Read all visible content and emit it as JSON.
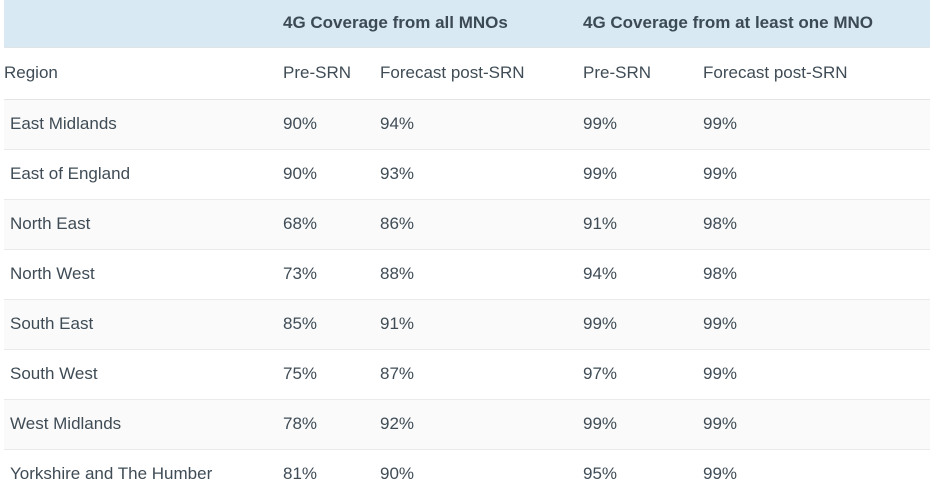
{
  "colors": {
    "group_header_bg": "#d9e9f3",
    "text": "#3f4c56",
    "alt_row_bg": "#fafafa",
    "row_border": "#eaeaea"
  },
  "table": {
    "group_headers": {
      "all_mnos": "4G Coverage from all MNOs",
      "one_mno": "4G Coverage from at least one MNO"
    },
    "columns": {
      "region": "Region",
      "all_pre": "Pre-SRN",
      "all_post": "Forecast post-SRN",
      "one_pre": "Pre-SRN",
      "one_post": "Forecast post-SRN"
    },
    "rows": [
      {
        "region": "East Midlands",
        "all_pre": "90%",
        "all_post": "94%",
        "one_pre": "99%",
        "one_post": "99%"
      },
      {
        "region": "East of England",
        "all_pre": "90%",
        "all_post": "93%",
        "one_pre": "99%",
        "one_post": "99%"
      },
      {
        "region": "North East",
        "all_pre": "68%",
        "all_post": "86%",
        "one_pre": "91%",
        "one_post": "98%"
      },
      {
        "region": "North West",
        "all_pre": "73%",
        "all_post": "88%",
        "one_pre": "94%",
        "one_post": "98%"
      },
      {
        "region": "South East",
        "all_pre": "85%",
        "all_post": "91%",
        "one_pre": "99%",
        "one_post": "99%"
      },
      {
        "region": "South West",
        "all_pre": "75%",
        "all_post": "87%",
        "one_pre": "97%",
        "one_post": "99%"
      },
      {
        "region": "West Midlands",
        "all_pre": "78%",
        "all_post": "92%",
        "one_pre": "99%",
        "one_post": "99%"
      },
      {
        "region": "Yorkshire and The Humber",
        "all_pre": "81%",
        "all_post": "90%",
        "one_pre": "95%",
        "one_post": "99%"
      }
    ]
  },
  "chart_data": {
    "type": "table",
    "title": "4G coverage by region, pre-SRN vs forecast post-SRN",
    "column_groups": [
      "4G Coverage from all MNOs",
      "4G Coverage from at least one MNO"
    ],
    "columns": [
      "Region",
      "Pre-SRN (all MNOs)",
      "Forecast post-SRN (all MNOs)",
      "Pre-SRN (at least one MNO)",
      "Forecast post-SRN (at least one MNO)"
    ],
    "categories": [
      "East Midlands",
      "East of England",
      "North East",
      "North West",
      "South East",
      "South West",
      "West Midlands",
      "Yorkshire and The Humber"
    ],
    "series": [
      {
        "name": "All MNOs Pre-SRN",
        "values": [
          90,
          90,
          68,
          73,
          85,
          75,
          78,
          81
        ]
      },
      {
        "name": "All MNOs Forecast post-SRN",
        "values": [
          94,
          93,
          86,
          88,
          91,
          87,
          92,
          90
        ]
      },
      {
        "name": "At least one MNO Pre-SRN",
        "values": [
          99,
          99,
          91,
          94,
          99,
          97,
          99,
          95
        ]
      },
      {
        "name": "At least one MNO Forecast post-SRN",
        "values": [
          99,
          99,
          98,
          98,
          99,
          99,
          99,
          99
        ]
      }
    ],
    "unit": "%"
  }
}
